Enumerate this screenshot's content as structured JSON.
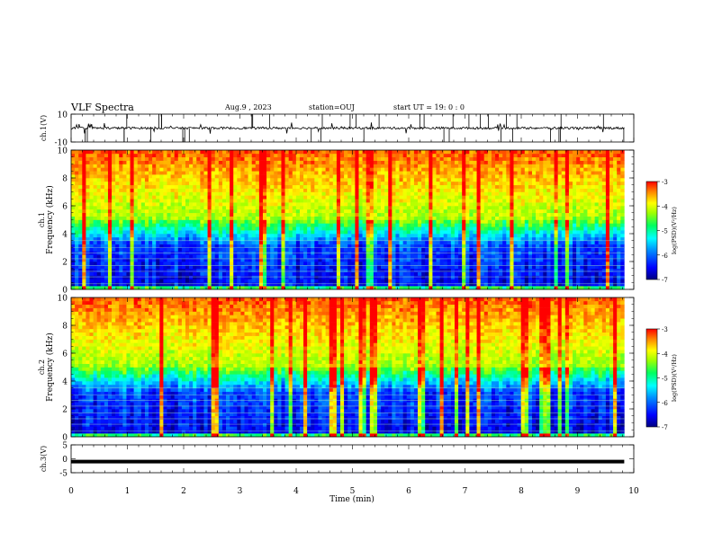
{
  "header": {
    "title": "VLF Spectra",
    "date": "Aug.9  , 2023",
    "station": "station=OUJ",
    "start": "start  UT =   19: 0  : 0"
  },
  "colors": {
    "colormap": [
      "#000080",
      "#0000ff",
      "#0080ff",
      "#00ffff",
      "#00ff80",
      "#80ff00",
      "#ffff00",
      "#ffb000",
      "#ff4000",
      "#ff0000"
    ]
  },
  "chart_data": [
    {
      "type": "line",
      "panel": "waveform-ch1",
      "ylabel": "ch.1(V)",
      "ylim": [
        -10,
        10
      ],
      "yticks": [
        "10",
        "-10"
      ],
      "xlim": [
        0,
        10
      ],
      "values_description_level": 0
    },
    {
      "type": "heatmap",
      "panel": "spectrogram-ch1",
      "ylabel": "ch.1\nFrequency (kHz)",
      "ylabel_top": "ch.1",
      "ylabel_main": "Frequency  (kHz)",
      "ylim": [
        0,
        10
      ],
      "yticks": [
        "0",
        "2",
        "4",
        "6",
        "8",
        "10"
      ],
      "xlim": [
        0,
        10
      ],
      "colorbar": {
        "label": "log(PSD)(V²/Hz)",
        "range": [
          -7,
          -3
        ],
        "ticks": [
          "-3",
          "-4",
          "-5",
          "-6",
          "-7"
        ]
      }
    },
    {
      "type": "heatmap",
      "panel": "spectrogram-ch2",
      "ylabel_top": "ch.2",
      "ylabel_main": "Frequency  (kHz)",
      "ylim": [
        0,
        10
      ],
      "yticks": [
        "0",
        "2",
        "4",
        "6",
        "8",
        "10"
      ],
      "xlim": [
        0,
        10
      ],
      "colorbar": {
        "label": "log(PSD)(V²/Hz)",
        "range": [
          -7,
          -3
        ],
        "ticks": [
          "-3",
          "-4",
          "-5",
          "-6",
          "-7"
        ]
      }
    },
    {
      "type": "line",
      "panel": "waveform-ch3",
      "ylabel": "ch.3(V)",
      "ylim": [
        -5,
        5
      ],
      "yticks": [
        "5",
        "0",
        "-5"
      ],
      "xlim": [
        0,
        10
      ],
      "level": -1
    }
  ],
  "xaxis": {
    "label": "Time  (min)",
    "ticks": [
      "0",
      "1",
      "2",
      "3",
      "4",
      "5",
      "6",
      "7",
      "8",
      "9",
      "10"
    ]
  }
}
